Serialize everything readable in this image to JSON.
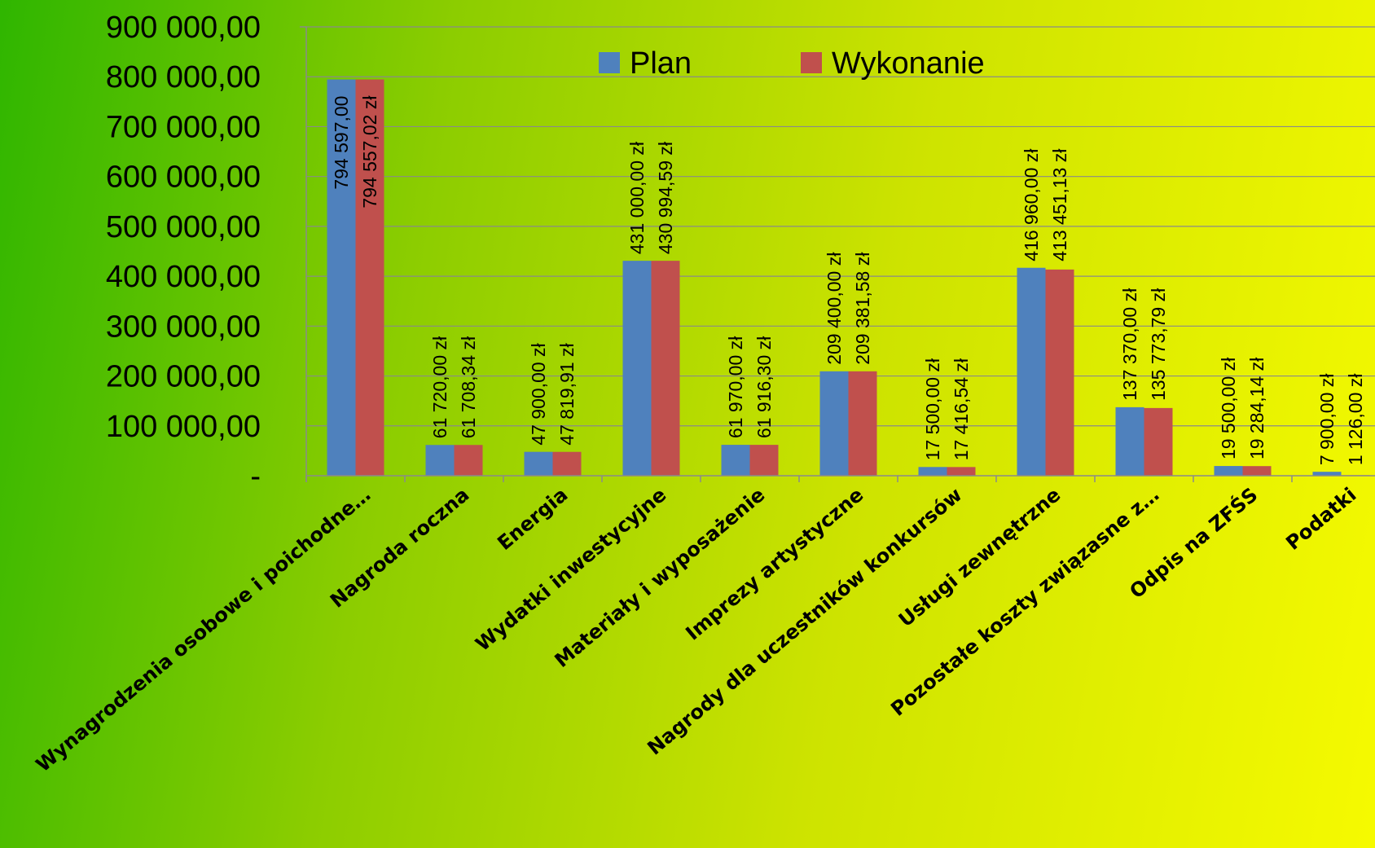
{
  "chart_data": {
    "type": "bar",
    "categories": [
      "Wynagrodzenia osobowe i poichodne…",
      "Nagroda roczna",
      "Energia",
      "Wydatki inwestycyjne",
      "Materiały i wyposażenie",
      "Imprezy artystyczne",
      "Nagrody dla uczestników konkursów",
      "Usługi zewnętrzne",
      "Pozostałe koszty związasne z…",
      "Odpis na ZFŚS",
      "Podatki"
    ],
    "series": [
      {
        "name": "Plan",
        "color": "#4f81bd",
        "values": [
          794597,
          61720,
          47900,
          431000,
          61970,
          209400,
          17500,
          416960,
          137370,
          19500,
          7900
        ],
        "labels": [
          "794 597,00",
          "61 720,00 zł",
          "47 900,00 zł",
          "431 000,00 zł",
          "61 970,00 zł",
          "209 400,00 zł",
          "17 500,00 zł",
          "416 960,00 zł",
          "137 370,00 zł",
          "19 500,00 zł",
          "7 900,00 zł"
        ]
      },
      {
        "name": "Wykonanie",
        "color": "#c0504d",
        "values": [
          794557.02,
          61708.34,
          47819.91,
          430994.59,
          61916.3,
          209381.58,
          17416.54,
          413451.13,
          135773.79,
          19284.14,
          1126.0
        ],
        "labels": [
          "794 557,02 zł",
          "61 708,34 zł",
          "47 819,91 zł",
          "430 994,59 zł",
          "61 916,30 zł",
          "209 381,58 zł",
          "17 416,54 zł",
          "413 451,13 zł",
          "135 773,79 zł",
          "19 284,14 zł",
          "1 126,00 zł"
        ]
      }
    ],
    "ylim": [
      0,
      900000
    ],
    "yticks": [
      0,
      100000,
      200000,
      300000,
      400000,
      500000,
      600000,
      700000,
      800000,
      900000
    ],
    "ytick_labels": [
      "-",
      "100 000,00",
      "200 000,00",
      "300 000,00",
      "400 000,00",
      "500 000,00",
      "600 000,00",
      "700 000,00",
      "800 000,00",
      "900 000,00"
    ],
    "grid": true,
    "legend_position": "top-center",
    "title": "",
    "xlabel": "",
    "ylabel": ""
  }
}
